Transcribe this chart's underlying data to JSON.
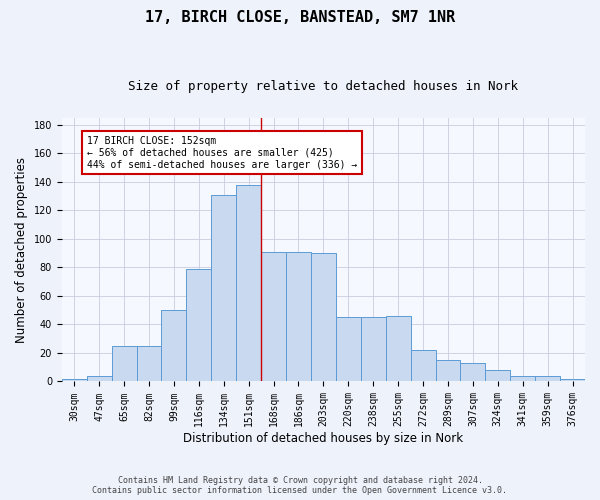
{
  "title": "17, BIRCH CLOSE, BANSTEAD, SM7 1NR",
  "subtitle": "Size of property relative to detached houses in Nork",
  "xlabel": "Distribution of detached houses by size in Nork",
  "ylabel": "Number of detached properties",
  "categories": [
    "30sqm",
    "47sqm",
    "65sqm",
    "82sqm",
    "99sqm",
    "116sqm",
    "134sqm",
    "151sqm",
    "168sqm",
    "186sqm",
    "203sqm",
    "220sqm",
    "238sqm",
    "255sqm",
    "272sqm",
    "289sqm",
    "307sqm",
    "324sqm",
    "341sqm",
    "359sqm",
    "376sqm"
  ],
  "bar_heights": [
    2,
    4,
    25,
    25,
    50,
    79,
    131,
    138,
    91,
    91,
    90,
    45,
    45,
    46,
    22,
    15,
    13,
    8,
    4,
    4,
    2
  ],
  "bar_color": "#c8d9f0",
  "bar_edge_color": "#5b9bd5",
  "vline_x_idx": 7.5,
  "vline_color": "#cc0000",
  "annotation_text": "17 BIRCH CLOSE: 152sqm\n← 56% of detached houses are smaller (425)\n44% of semi-detached houses are larger (336) →",
  "annotation_box_color": "white",
  "annotation_box_edge_color": "#cc0000",
  "ylim": [
    0,
    185
  ],
  "yticks": [
    0,
    20,
    40,
    60,
    80,
    100,
    120,
    140,
    160,
    180
  ],
  "title_fontsize": 11,
  "subtitle_fontsize": 9,
  "xlabel_fontsize": 8.5,
  "ylabel_fontsize": 8.5,
  "tick_fontsize": 7,
  "annot_fontsize": 7,
  "footer_text": "Contains HM Land Registry data © Crown copyright and database right 2024.\nContains public sector information licensed under the Open Government Licence v3.0.",
  "background_color": "#eef2fb",
  "plot_background_color": "#f5f8fe",
  "grid_color": "#c8cce0"
}
